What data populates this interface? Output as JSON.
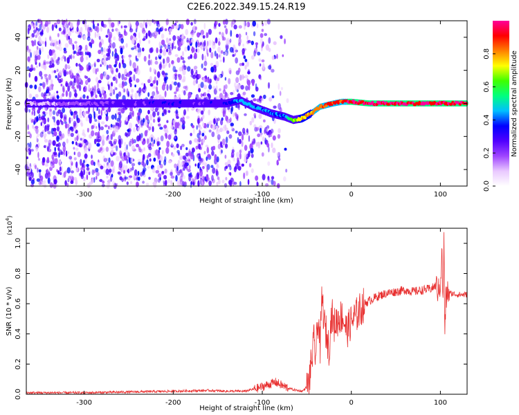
{
  "title": "C2E6.2022.349.15.24.R19",
  "chart_data": [
    {
      "type": "heatmap",
      "xlabel": "Height of straight line (km)",
      "ylabel": "Frequency (Hz)",
      "xlim": [
        -365,
        130
      ],
      "ylim": [
        -50,
        50
      ],
      "x_ticks": [
        -300,
        -200,
        -100,
        0,
        100
      ],
      "x_tick_labels": [
        "-300",
        "-200",
        "-100",
        "0",
        "100"
      ],
      "y_ticks": [
        -40,
        -20,
        0,
        20,
        40
      ],
      "y_tick_labels": [
        "-40",
        "-20",
        "0",
        "20",
        "40"
      ],
      "ridge": {
        "x": [
          -365,
          -250,
          -200,
          -170,
          -140,
          -125,
          -110,
          -90,
          -75,
          -65,
          -55,
          -45,
          -35,
          -20,
          -10,
          0,
          20,
          50,
          80,
          100,
          130
        ],
        "y": [
          0,
          0,
          0,
          0,
          0,
          2,
          -2,
          -6,
          -8,
          -10,
          -9,
          -6,
          -2,
          0,
          1,
          1,
          0,
          0,
          0,
          0,
          0
        ],
        "amplitude": [
          0.15,
          0.3,
          0.35,
          0.3,
          0.35,
          0.5,
          0.5,
          0.45,
          0.45,
          0.7,
          0.8,
          0.85,
          0.9,
          0.95,
          0.9,
          1.0,
          1.0,
          1.0,
          1.0,
          1.0,
          1.0
        ]
      },
      "noise_extent_x": [
        -365,
        -70
      ],
      "colorbar": {
        "label": "Normalized spectral amplitude",
        "range": [
          0,
          1
        ],
        "ticks": [
          0.0,
          0.2,
          0.4,
          0.6,
          0.8
        ],
        "tick_labels": [
          "0.0",
          "0.2",
          "0.4",
          "0.6",
          "0.8"
        ],
        "colors": [
          "#ffffff",
          "#e9c8ff",
          "#9f45ff",
          "#5000ff",
          "#0000ff",
          "#00bfff",
          "#00ff7f",
          "#3fff00",
          "#ffff00",
          "#ff8000",
          "#ff0000",
          "#ff0099"
        ]
      }
    },
    {
      "type": "line",
      "xlabel": "Height of straight line (km)",
      "ylabel": "SNR (10 * v/v)",
      "y_scale_note": "(x10",
      "y_scale_exp": "4",
      "y_scale_close": ")",
      "xlim": [
        -365,
        130
      ],
      "ylim": [
        0,
        1.1
      ],
      "x_ticks": [
        -300,
        -200,
        -100,
        0,
        100
      ],
      "x_tick_labels": [
        "-300",
        "-200",
        "-100",
        "0",
        "100"
      ],
      "y_ticks": [
        0,
        0.2,
        0.4,
        0.6,
        0.8,
        1.0
      ],
      "y_tick_labels": [
        "0.0",
        "0.2",
        "0.4",
        "0.6",
        "0.8",
        "1.0"
      ],
      "color": "#e83030",
      "series": [
        {
          "x": [
            -365,
            -300,
            -250,
            -200,
            -160,
            -140,
            -120,
            -105,
            -95,
            -85,
            -75,
            -65,
            -55,
            -48,
            -45,
            -42,
            -40,
            -37,
            -35,
            -33,
            -30,
            -28,
            -25,
            -22,
            -20,
            -15,
            -10,
            -5,
            0,
            5,
            10,
            15,
            20,
            30,
            40,
            50,
            60,
            70,
            80,
            90,
            95,
            98,
            100,
            102,
            103,
            104,
            105,
            106,
            108,
            110,
            120,
            130
          ],
          "y": [
            0.01,
            0.01,
            0.015,
            0.02,
            0.025,
            0.02,
            0.02,
            0.04,
            0.06,
            0.08,
            0.05,
            0.03,
            0.02,
            0.06,
            0.2,
            0.35,
            0.25,
            0.52,
            0.3,
            0.65,
            0.45,
            0.4,
            0.3,
            0.55,
            0.45,
            0.5,
            0.52,
            0.42,
            0.48,
            0.52,
            0.56,
            0.6,
            0.62,
            0.65,
            0.67,
            0.68,
            0.69,
            0.68,
            0.69,
            0.7,
            0.72,
            0.68,
            0.73,
            0.95,
            0.55,
            1.05,
            0.36,
            0.62,
            0.68,
            0.67,
            0.66,
            0.66
          ]
        }
      ]
    }
  ]
}
